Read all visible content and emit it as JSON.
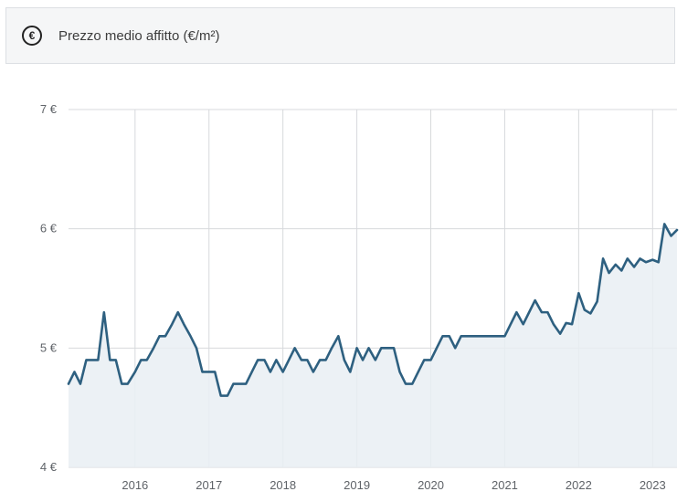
{
  "header": {
    "icon": "euro-icon",
    "icon_glyph": "€",
    "title": "Prezzo medio affitto (€/m²)"
  },
  "colors": {
    "line": "#2e6080",
    "area": "#e9eef3",
    "grid": "#d7d9dc",
    "header_bg": "#f5f6f7"
  },
  "chart_data": {
    "type": "area",
    "title": "",
    "xlabel": "",
    "ylabel": "",
    "ylim": [
      4,
      7
    ],
    "xlim": [
      2015.1,
      2023.33
    ],
    "y_ticks": [
      {
        "value": 4,
        "label": "4 €"
      },
      {
        "value": 5,
        "label": "5 €"
      },
      {
        "value": 6,
        "label": "6 €"
      },
      {
        "value": 7,
        "label": "7 €"
      }
    ],
    "x_ticks": [
      {
        "value": 2016,
        "label": "2016"
      },
      {
        "value": 2017,
        "label": "2017"
      },
      {
        "value": 2018,
        "label": "2018"
      },
      {
        "value": 2019,
        "label": "2019"
      },
      {
        "value": 2020,
        "label": "2020"
      },
      {
        "value": 2021,
        "label": "2021"
      },
      {
        "value": 2022,
        "label": "2022"
      },
      {
        "value": 2023,
        "label": "2023"
      }
    ],
    "grid": true,
    "series": [
      {
        "values": [
          [
            2015.1,
            4.7
          ],
          [
            2015.18,
            4.8
          ],
          [
            2015.26,
            4.7
          ],
          [
            2015.34,
            4.9
          ],
          [
            2015.42,
            4.9
          ],
          [
            2015.5,
            4.9
          ],
          [
            2015.58,
            5.3
          ],
          [
            2015.66,
            4.9
          ],
          [
            2015.74,
            4.9
          ],
          [
            2015.82,
            4.7
          ],
          [
            2015.9,
            4.7
          ],
          [
            2016.0,
            4.8
          ],
          [
            2016.08,
            4.9
          ],
          [
            2016.16,
            4.9
          ],
          [
            2016.25,
            5.0
          ],
          [
            2016.33,
            5.1
          ],
          [
            2016.41,
            5.1
          ],
          [
            2016.5,
            5.2
          ],
          [
            2016.58,
            5.3
          ],
          [
            2016.66,
            5.2
          ],
          [
            2016.75,
            5.1
          ],
          [
            2016.83,
            5.0
          ],
          [
            2016.91,
            4.8
          ],
          [
            2017.0,
            4.8
          ],
          [
            2017.08,
            4.8
          ],
          [
            2017.16,
            4.6
          ],
          [
            2017.25,
            4.6
          ],
          [
            2017.33,
            4.7
          ],
          [
            2017.41,
            4.7
          ],
          [
            2017.5,
            4.7
          ],
          [
            2017.58,
            4.8
          ],
          [
            2017.66,
            4.9
          ],
          [
            2017.75,
            4.9
          ],
          [
            2017.83,
            4.8
          ],
          [
            2017.91,
            4.9
          ],
          [
            2018.0,
            4.8
          ],
          [
            2018.08,
            4.9
          ],
          [
            2018.16,
            5.0
          ],
          [
            2018.25,
            4.9
          ],
          [
            2018.33,
            4.9
          ],
          [
            2018.41,
            4.8
          ],
          [
            2018.5,
            4.9
          ],
          [
            2018.58,
            4.9
          ],
          [
            2018.66,
            5.0
          ],
          [
            2018.75,
            5.1
          ],
          [
            2018.83,
            4.9
          ],
          [
            2018.91,
            4.8
          ],
          [
            2019.0,
            5.0
          ],
          [
            2019.08,
            4.9
          ],
          [
            2019.16,
            5.0
          ],
          [
            2019.25,
            4.9
          ],
          [
            2019.33,
            5.0
          ],
          [
            2019.41,
            5.0
          ],
          [
            2019.5,
            5.0
          ],
          [
            2019.58,
            4.8
          ],
          [
            2019.66,
            4.7
          ],
          [
            2019.75,
            4.7
          ],
          [
            2019.83,
            4.8
          ],
          [
            2019.91,
            4.9
          ],
          [
            2020.0,
            4.9
          ],
          [
            2020.08,
            5.0
          ],
          [
            2020.16,
            5.1
          ],
          [
            2020.25,
            5.1
          ],
          [
            2020.33,
            5.0
          ],
          [
            2020.41,
            5.1
          ],
          [
            2020.5,
            5.1
          ],
          [
            2020.58,
            5.1
          ],
          [
            2020.66,
            5.1
          ],
          [
            2020.75,
            5.1
          ],
          [
            2020.83,
            5.1
          ],
          [
            2020.91,
            5.1
          ],
          [
            2021.0,
            5.1
          ],
          [
            2021.08,
            5.2
          ],
          [
            2021.16,
            5.3
          ],
          [
            2021.25,
            5.2
          ],
          [
            2021.33,
            5.3
          ],
          [
            2021.41,
            5.4
          ],
          [
            2021.5,
            5.3
          ],
          [
            2021.58,
            5.3
          ],
          [
            2021.66,
            5.2
          ],
          [
            2021.75,
            5.12
          ],
          [
            2021.83,
            5.21
          ],
          [
            2021.91,
            5.2
          ],
          [
            2022.0,
            5.46
          ],
          [
            2022.08,
            5.32
          ],
          [
            2022.16,
            5.29
          ],
          [
            2022.25,
            5.39
          ],
          [
            2022.33,
            5.75
          ],
          [
            2022.41,
            5.63
          ],
          [
            2022.5,
            5.7
          ],
          [
            2022.58,
            5.65
          ],
          [
            2022.66,
            5.75
          ],
          [
            2022.75,
            5.68
          ],
          [
            2022.83,
            5.75
          ],
          [
            2022.91,
            5.72
          ],
          [
            2023.0,
            5.74
          ],
          [
            2023.08,
            5.72
          ],
          [
            2023.16,
            6.04
          ],
          [
            2023.25,
            5.94
          ],
          [
            2023.33,
            5.99
          ]
        ]
      }
    ]
  }
}
